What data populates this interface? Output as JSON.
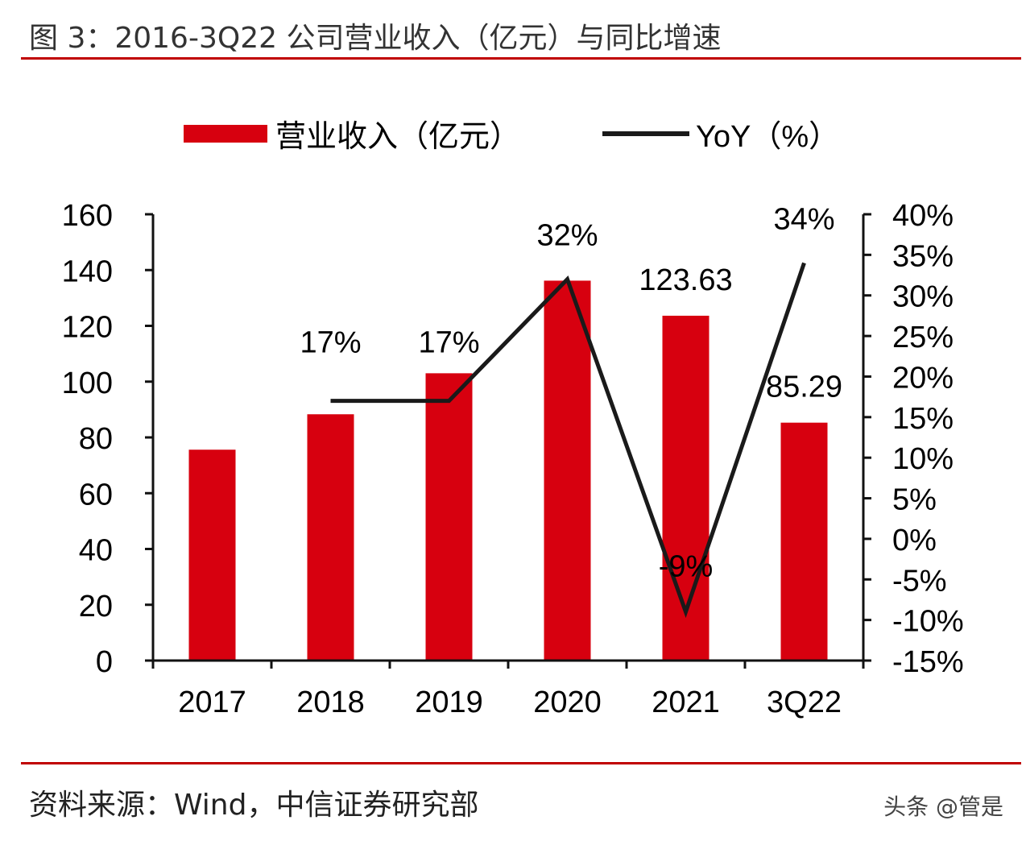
{
  "title": "图 3：2016-3Q22 公司营业收入（亿元）与同比增速",
  "source": "资料来源：Wind，中信证券研究部",
  "watermark": "头条 @管是",
  "colors": {
    "bar": "#d7000f",
    "line": "#1a1a1a",
    "rule": "#c00000"
  },
  "chart_data": {
    "type": "bar+line",
    "categories": [
      "2017",
      "2018",
      "2019",
      "2020",
      "2021",
      "3Q22"
    ],
    "series": [
      {
        "name": "营业收入（亿元）",
        "type": "bar",
        "axis": "left",
        "values": [
          75.6,
          88.3,
          103,
          136.2,
          123.63,
          85.29
        ],
        "labels": [
          "",
          "",
          "",
          "",
          "123.63",
          "85.29"
        ]
      },
      {
        "name": "YoY（%）",
        "type": "line",
        "axis": "right",
        "values": [
          null,
          17,
          17,
          32,
          -9,
          34
        ],
        "labels": [
          "",
          "17%",
          "17%",
          "32%",
          "-9%",
          "34%"
        ]
      }
    ],
    "left_axis": {
      "ylim": [
        0,
        160
      ],
      "ticks": [
        "0",
        "20",
        "40",
        "60",
        "80",
        "100",
        "120",
        "140",
        "160"
      ]
    },
    "right_axis": {
      "ylim": [
        -15,
        40
      ],
      "ticks": [
        "-15%",
        "-10%",
        "-5%",
        "0%",
        "5%",
        "10%",
        "15%",
        "20%",
        "25%",
        "30%",
        "35%",
        "40%"
      ]
    },
    "legend": "top-center",
    "grid": false
  }
}
